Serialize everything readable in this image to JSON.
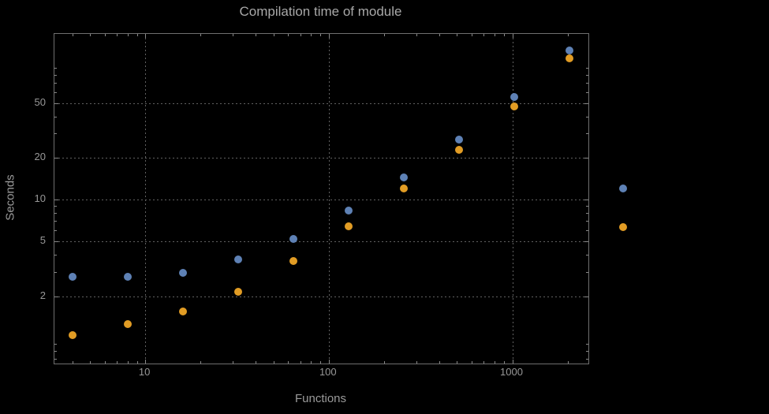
{
  "chart_data": {
    "type": "scatter",
    "title": "Compilation time of module",
    "xlabel": "Functions",
    "ylabel": "Seconds",
    "x_scale": "log",
    "y_scale": "log",
    "xlim": [
      3.2,
      2600
    ],
    "ylim": [
      0.65,
      158
    ],
    "x_ticks": [
      10,
      100,
      1000
    ],
    "y_ticks": [
      2,
      5,
      10,
      20,
      50
    ],
    "grid": true,
    "x": [
      4,
      8,
      16,
      32,
      64,
      128,
      256,
      512,
      1024,
      2048
    ],
    "series": [
      {
        "name": "blue",
        "color": "#5e81b5",
        "values": [
          2.75,
          2.75,
          2.95,
          3.7,
          5.2,
          8.3,
          14.5,
          27,
          55,
          120
        ]
      },
      {
        "name": "orange",
        "color": "#e19c24",
        "values": [
          1.05,
          1.25,
          1.55,
          2.15,
          3.6,
          6.4,
          12,
          23,
          47,
          105
        ]
      }
    ],
    "legend": {
      "position": "right-outside",
      "markers": [
        {
          "series": "blue",
          "color": "#5e81b5"
        },
        {
          "series": "orange",
          "color": "#e19c24"
        }
      ],
      "marker_px": {
        "x": 790,
        "y": [
          239,
          288
        ]
      }
    }
  },
  "colors": {
    "background": "#000000",
    "frame": "#6f6f6f",
    "grid": "#616161",
    "text": "#9a9a9a"
  }
}
